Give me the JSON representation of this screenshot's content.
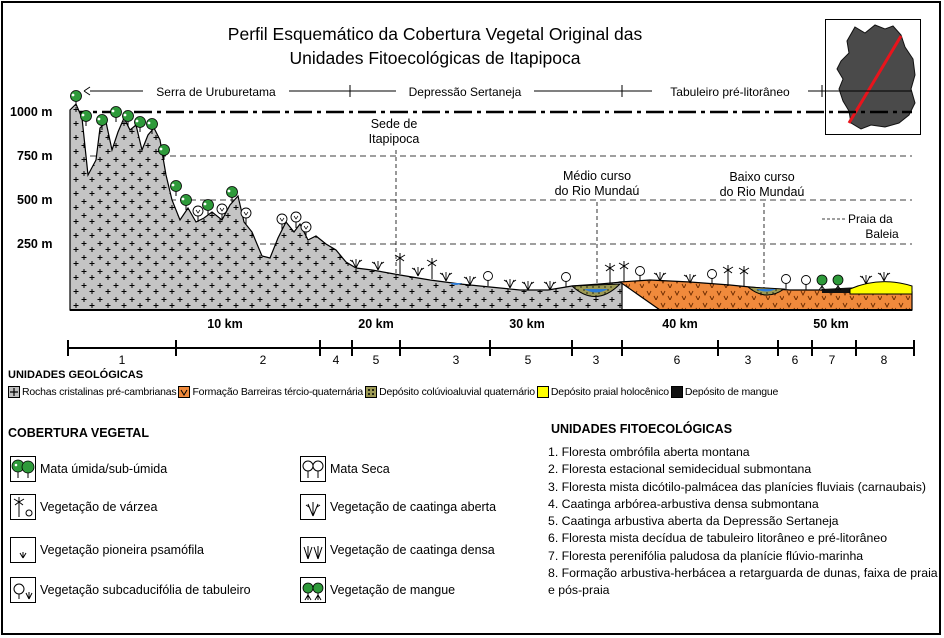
{
  "title": {
    "line1": "Perfil Esquemático da Cobertura Vegetal Original das",
    "line2": "Unidades Fitoecológicas de Itapipoca"
  },
  "regions": [
    {
      "label": "Serra de Uruburetama"
    },
    {
      "label": "Depressão Sertaneja"
    },
    {
      "label": "Tabuleiro pré-litorâneo"
    }
  ],
  "elevation_labels": [
    "1000 m",
    "750 m",
    "500 m",
    "250 m"
  ],
  "annotations": {
    "sede": [
      "Sede de",
      "Itapipoca"
    ],
    "medio": [
      "Médio curso",
      "do Rio Mundaú"
    ],
    "baixo": [
      "Baixo curso",
      "do Rio Mundaú"
    ],
    "praia": [
      "Praia da",
      "Baleia"
    ]
  },
  "distance_labels": [
    "10 km",
    "20 km",
    "30 km",
    "40 km",
    "50 km"
  ],
  "unit_strip": [
    "1",
    "2",
    "4",
    "5",
    "3",
    "5",
    "3",
    "6",
    "3",
    "6",
    "7",
    "8"
  ],
  "geological": {
    "title": "UNIDADES GEOLÓGICAS",
    "items": [
      {
        "label": "Rochas cristalinas pré-cambrianas",
        "color": "#c0c0c0"
      },
      {
        "label": "Formação Barreiras tércio-quaternária",
        "color": "#f08a3c"
      },
      {
        "label": "Depósito colúvioaluvial quaternário",
        "color": "#9c9a55"
      },
      {
        "label": "Depósito praial holocênico",
        "color": "#ffff00"
      },
      {
        "label": "Depósito de mangue",
        "color": "#111111"
      }
    ]
  },
  "vegetation": {
    "title": "COBERTURA VEGETAL",
    "items": [
      {
        "label": "Mata úmida/sub-úmida",
        "icon": "humid-forest-icon"
      },
      {
        "label": "Mata Seca",
        "icon": "dry-forest-icon"
      },
      {
        "label": "Vegetação de várzea",
        "icon": "floodplain-vegetation-icon"
      },
      {
        "label": "Vegetação de caatinga aberta",
        "icon": "open-caatinga-icon"
      },
      {
        "label": "Vegetação pioneira psamófila",
        "icon": "pioneer-psammophile-icon"
      },
      {
        "label": "Vegetação de caatinga densa",
        "icon": "dense-caatinga-icon"
      },
      {
        "label": "Vegetação subcaducifólia de tabuleiro",
        "icon": "subdeciduous-tabuleiro-icon"
      },
      {
        "label": "Vegetação de mangue",
        "icon": "mangrove-icon"
      }
    ]
  },
  "phytoecological": {
    "title": "UNIDADES FITOECOLÓGICAS",
    "items": [
      "1. Floresta ombrófila aberta montana",
      "2. Floresta estacional semidecidual submontana",
      "3. Floresta mista dicótilo-palmácea das planícies fluviais (carnaubais)",
      "4. Caatinga arbórea-arbustiva densa submontana",
      "5. Caatinga arbustiva aberta da Depressão Sertaneja",
      "6. Floresta mista decídua de tabuleiro litorâneo e pré-litorâneo",
      "7. Floresta perenifólia paludosa da planície flúvio-marinha",
      "8. Formação arbustiva-herbácea a retarguarda de dunas, faixa de praia e pós-praia"
    ]
  }
}
